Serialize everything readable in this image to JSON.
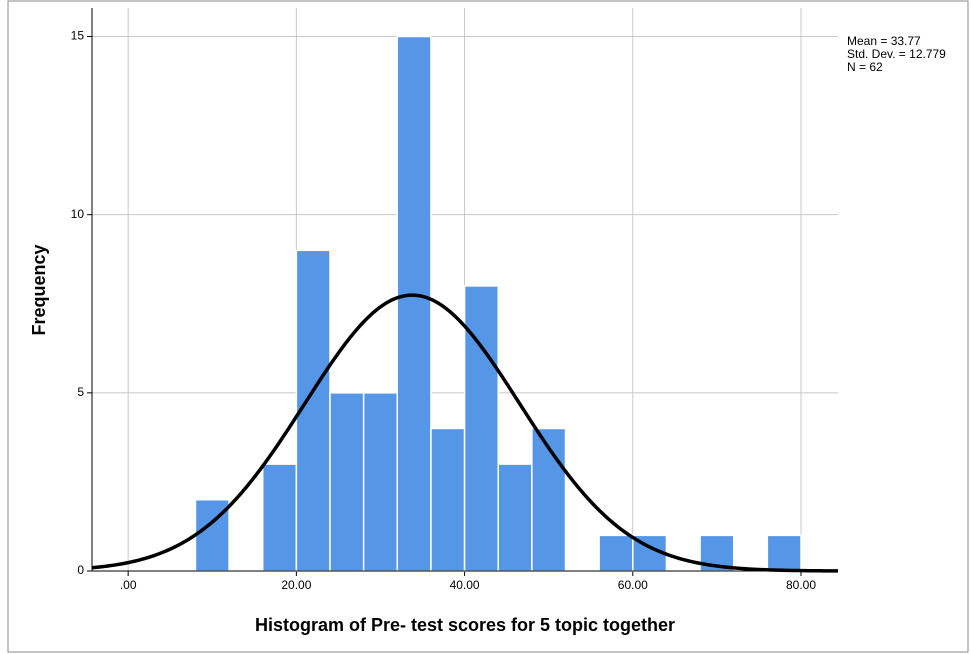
{
  "chart_data": {
    "type": "histogram",
    "xlabel": "Histogram of Pre- test scores for 5  topic together",
    "ylabel": "Frequency",
    "annotations": [
      "Mean = 33.77",
      "Std. Dev. = 12.779",
      "N = 62"
    ],
    "bins": [
      8,
      12,
      16,
      20,
      24,
      28,
      32,
      36,
      40,
      44,
      48,
      52,
      56,
      60,
      64,
      68,
      72,
      76,
      80
    ],
    "values": [
      2,
      0,
      3,
      9,
      5,
      5,
      15,
      4,
      8,
      3,
      4,
      0,
      1,
      1,
      0,
      1,
      0,
      1
    ],
    "color": "#5596e6",
    "normal_curve": {
      "mean": 33.77,
      "std": 12.779,
      "n": 62,
      "color": "#000000"
    },
    "xlim": [
      -4.3,
      84.4
    ],
    "ylim": [
      0,
      15.8
    ],
    "xticks": [
      {
        "value": 0,
        "label": ".00"
      },
      {
        "value": 20,
        "label": "20.00"
      },
      {
        "value": 40,
        "label": "40.00"
      },
      {
        "value": 60,
        "label": "60.00"
      },
      {
        "value": 80,
        "label": "80.00"
      }
    ],
    "yticks": [
      0,
      5,
      10,
      15
    ],
    "grid": true
  }
}
